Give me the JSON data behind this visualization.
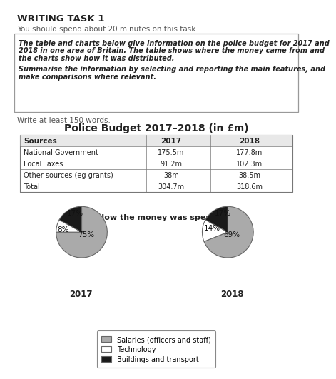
{
  "title_main": "WRITING TASK 1",
  "subtitle": "You should spend about 20 minutes on this task.",
  "box_line1": "The table and charts below give information on the police budget for 2017 and",
  "box_line2": "2018 in one area of Britain. The table shows where the money came from and",
  "box_line3": "the charts show how it was distributed.",
  "box_line4": "Summarise the information by selecting and reporting the main features, and",
  "box_line5": "make comparisons where relevant.",
  "write_text": "Write at least 150 words.",
  "table_title": "Police Budget 2017–2018 (in £m)",
  "table_headers": [
    "Sources",
    "2017",
    "2018"
  ],
  "table_rows": [
    [
      "National Government",
      "175.5m",
      "177.8m"
    ],
    [
      "Local Taxes",
      "91.2m",
      "102.3m"
    ],
    [
      "Other sources (eg grants)",
      "38m",
      "38.5m"
    ],
    [
      "Total",
      "304.7m",
      "318.6m"
    ]
  ],
  "pie_title": "How the money was spent",
  "pie_2017": [
    75,
    8,
    17
  ],
  "pie_2018": [
    69,
    14,
    17
  ],
  "pie_colors": [
    "#aaaaaa",
    "#ffffff",
    "#1a1a1a"
  ],
  "pie_edge_color": "#666666",
  "pie_year_labels": [
    "2017",
    "2018"
  ],
  "legend_labels": [
    "Salaries (officers and staff)",
    "Technology",
    "Buildings and transport"
  ],
  "legend_colors": [
    "#aaaaaa",
    "#ffffff",
    "#1a1a1a"
  ],
  "background_color": "#ffffff",
  "text_color_body": "#555555",
  "text_color_dark": "#222222",
  "box_border_color": "#999999",
  "table_border_color": "#777777",
  "header_bg_color": "#e8e8e8"
}
